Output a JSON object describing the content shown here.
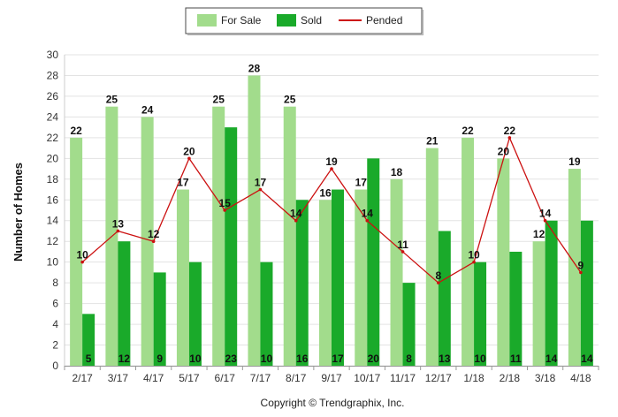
{
  "chart_data": {
    "type": "bar",
    "categories": [
      "2/17",
      "3/17",
      "4/17",
      "5/17",
      "6/17",
      "7/17",
      "8/17",
      "9/17",
      "10/17",
      "11/17",
      "12/17",
      "1/18",
      "2/18",
      "3/18",
      "4/18"
    ],
    "series": [
      {
        "name": "For Sale",
        "type": "bar",
        "color": "#a2dc8c",
        "values": [
          22,
          25,
          24,
          17,
          25,
          28,
          25,
          16,
          17,
          18,
          21,
          22,
          20,
          12,
          19
        ]
      },
      {
        "name": "Sold",
        "type": "bar",
        "color": "#1aaa2a",
        "values": [
          5,
          12,
          9,
          10,
          23,
          10,
          16,
          17,
          20,
          8,
          13,
          10,
          11,
          14,
          14
        ]
      },
      {
        "name": "Pended",
        "type": "line",
        "color": "#cc1111",
        "values": [
          10,
          13,
          12,
          20,
          15,
          17,
          14,
          19,
          14,
          11,
          8,
          10,
          22,
          14,
          9
        ]
      }
    ],
    "ylabel": "Number of Homes",
    "xlabel": "",
    "ylim": [
      0,
      30
    ],
    "yticks": [
      0,
      2,
      4,
      6,
      8,
      10,
      12,
      14,
      16,
      18,
      20,
      22,
      24,
      26,
      28,
      30
    ],
    "grid": true,
    "legend_position": "top-center"
  },
  "copyright": "Copyright © Trendgraphix, Inc."
}
